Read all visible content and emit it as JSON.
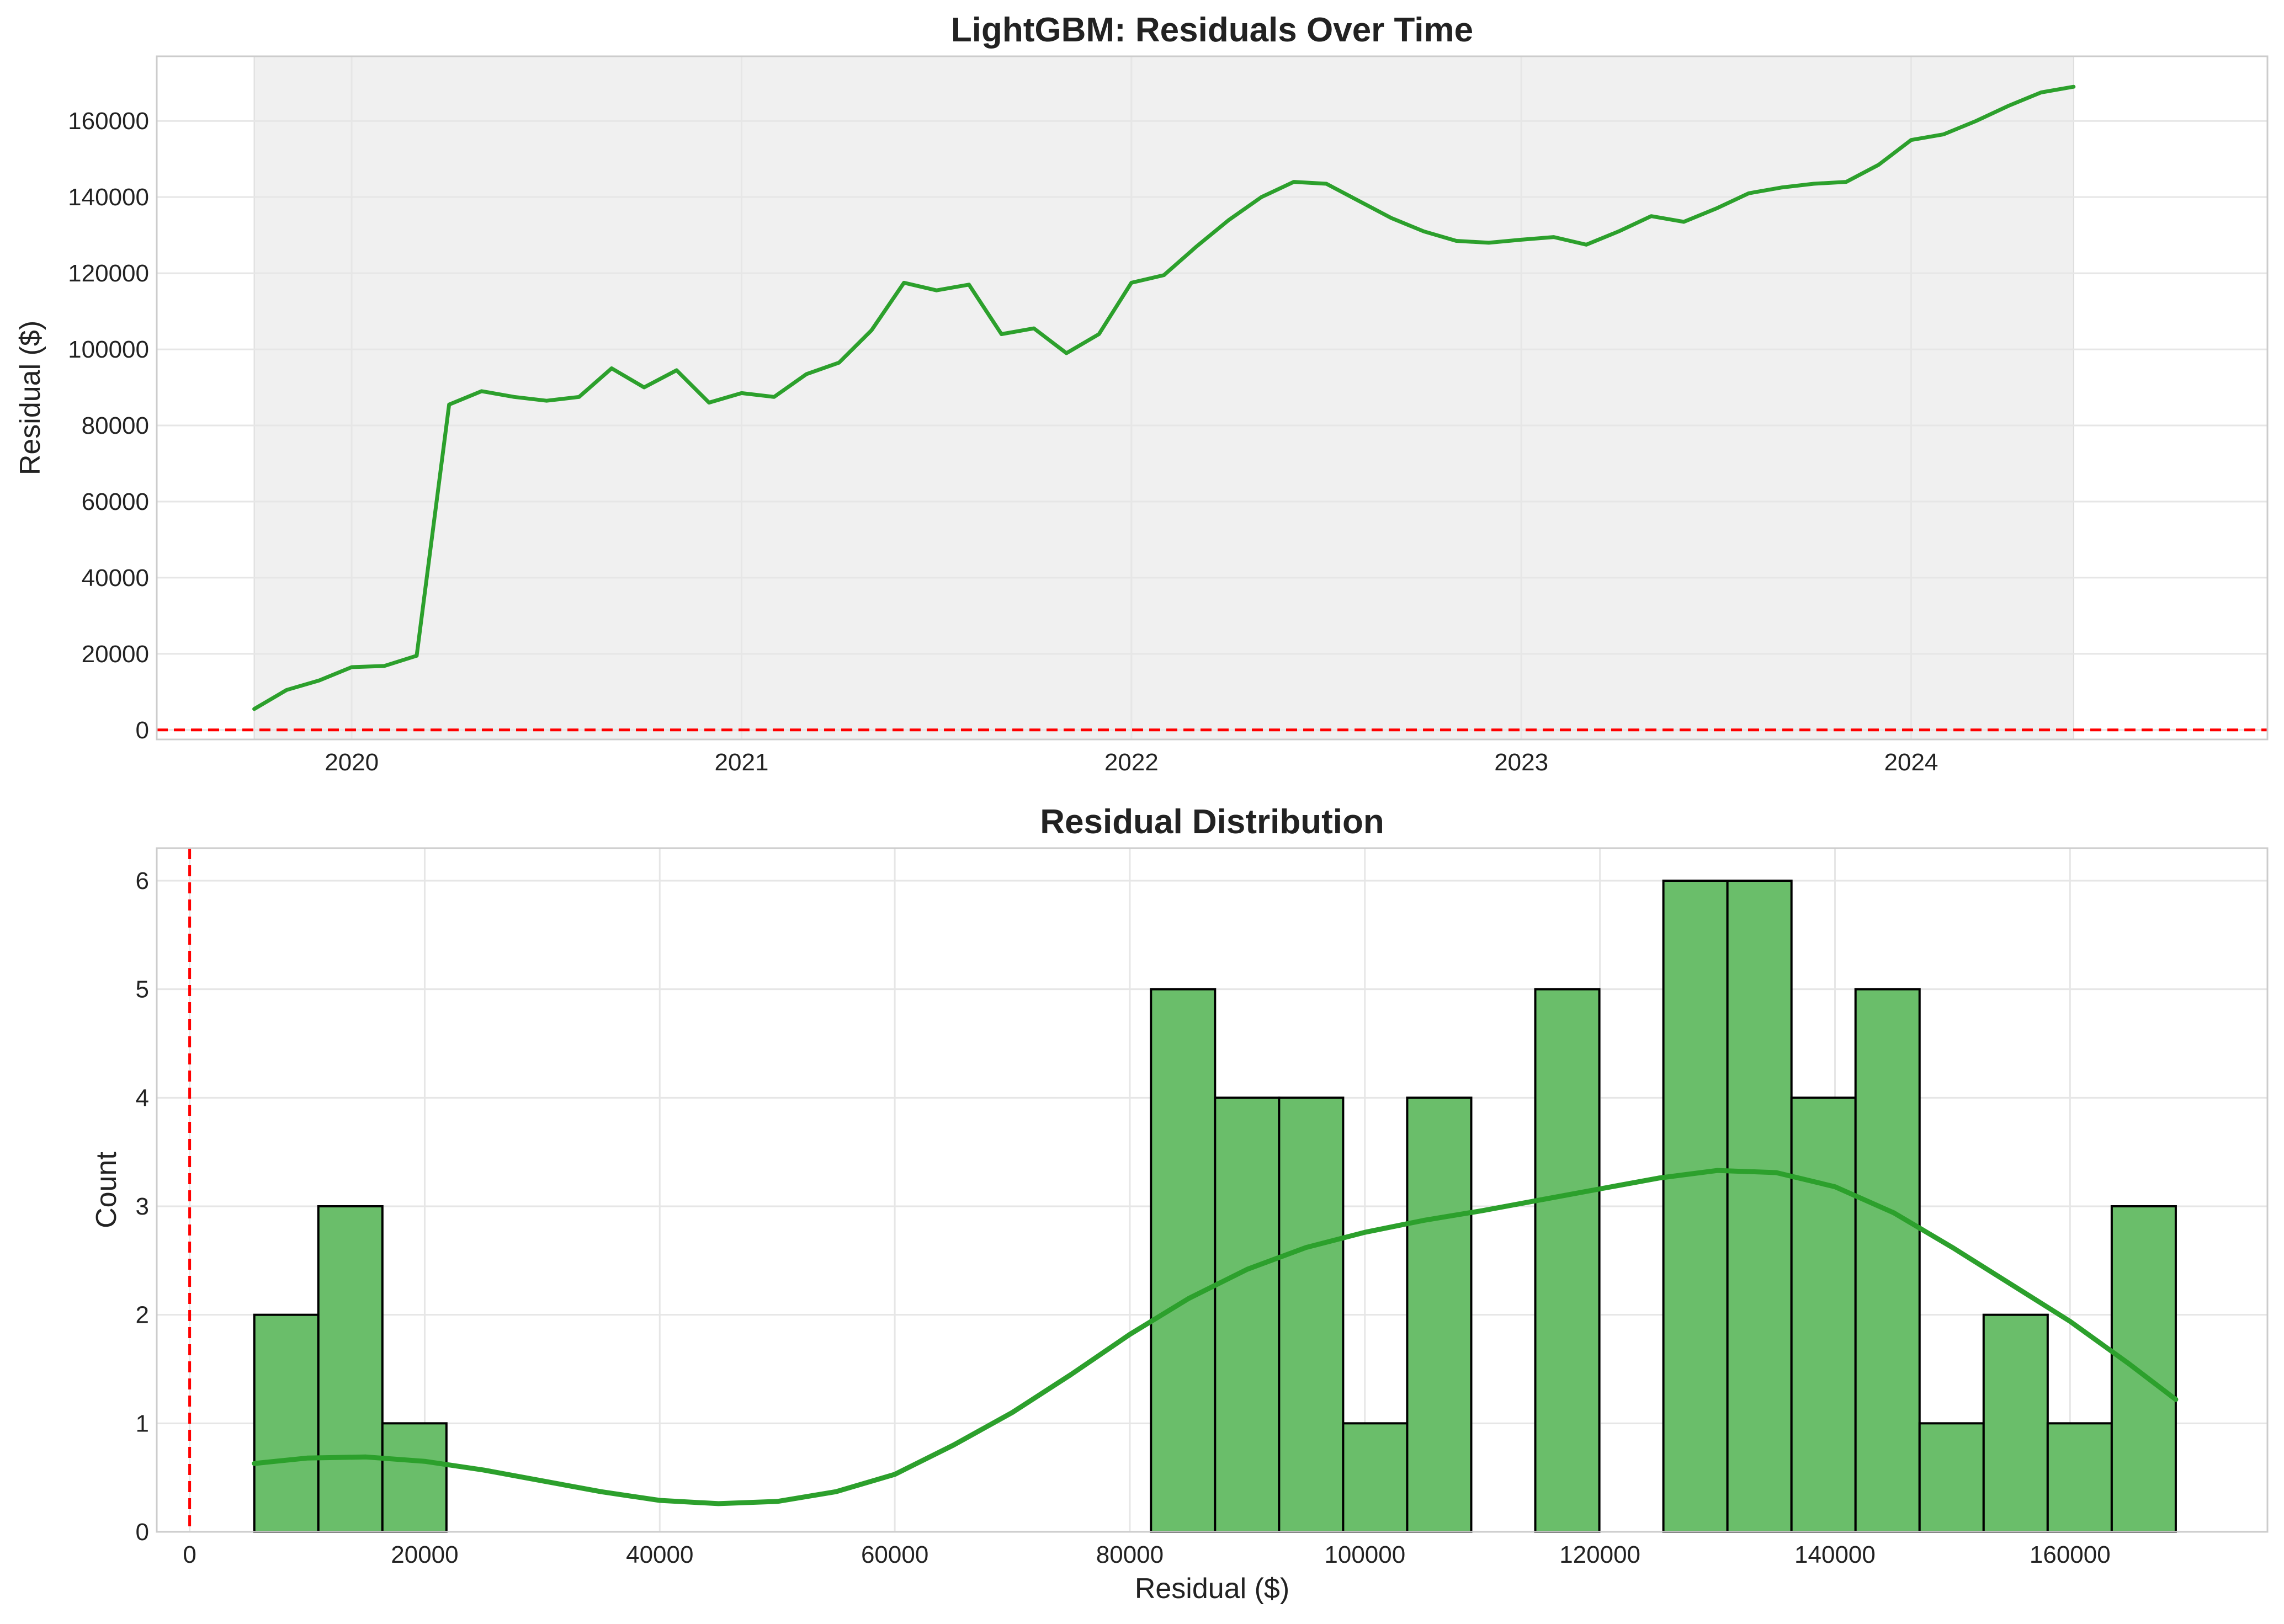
{
  "chart_data": [
    {
      "type": "line",
      "title": "LightGBM: Residuals Over Time",
      "xlabel": "",
      "ylabel": "Residual ($)",
      "x_tick_labels": [
        "2020",
        "2021",
        "2022",
        "2023",
        "2024"
      ],
      "y_tick_labels": [
        "0",
        "20000",
        "40000",
        "60000",
        "80000",
        "100000",
        "120000",
        "140000",
        "160000"
      ],
      "xlim": [
        "2019-07-01",
        "2024-11-30"
      ],
      "ylim": [
        -2500,
        177000
      ],
      "grid": true,
      "shaded_region": {
        "from": "2019-10",
        "to": "2024-06",
        "color": "#f0f0f0"
      },
      "reference_line": {
        "y": 0,
        "style": "dashed",
        "color": "#ff0000"
      },
      "line_color": "#2ca02c",
      "series": [
        {
          "x": [
            "2019-10",
            "2019-11",
            "2019-12",
            "2020-01",
            "2020-02",
            "2020-03",
            "2020-04",
            "2020-05",
            "2020-06",
            "2020-07",
            "2020-08",
            "2020-09",
            "2020-10",
            "2020-11",
            "2020-12",
            "2021-01",
            "2021-02",
            "2021-03",
            "2021-04",
            "2021-05",
            "2021-06",
            "2021-07",
            "2021-08",
            "2021-09",
            "2021-10",
            "2021-11",
            "2021-12",
            "2022-01",
            "2022-02",
            "2022-03",
            "2022-04",
            "2022-05",
            "2022-06",
            "2022-07",
            "2022-08",
            "2022-09",
            "2022-10",
            "2022-11",
            "2022-12",
            "2023-01",
            "2023-02",
            "2023-03",
            "2023-04",
            "2023-05",
            "2023-06",
            "2023-07",
            "2023-08",
            "2023-09",
            "2023-10",
            "2023-11",
            "2023-12",
            "2024-01",
            "2024-02",
            "2024-03",
            "2024-04",
            "2024-05",
            "2024-06"
          ],
          "values": [
            5500,
            10500,
            13000,
            16500,
            16800,
            19500,
            85500,
            89000,
            87500,
            86500,
            87500,
            95000,
            90000,
            94500,
            86000,
            88500,
            87500,
            93500,
            96500,
            105000,
            117500,
            115500,
            117000,
            104000,
            105500,
            99000,
            104000,
            117500,
            119500,
            127000,
            134000,
            140000,
            144000,
            143500,
            139000,
            134500,
            131000,
            128500,
            128000,
            128800,
            129500,
            127500,
            131000,
            135000,
            133500,
            137000,
            141000,
            142500,
            143500,
            144000,
            148500,
            155000,
            156500,
            160000,
            164000,
            167500,
            169000
          ]
        }
      ]
    },
    {
      "type": "bar",
      "title": "Residual Distribution",
      "xlabel": "Residual ($)",
      "ylabel": "Count",
      "x_tick_labels": [
        "0",
        "20000",
        "40000",
        "60000",
        "80000",
        "100000",
        "120000",
        "140000",
        "160000"
      ],
      "y_tick_labels": [
        "0",
        "1",
        "2",
        "3",
        "4",
        "5",
        "6"
      ],
      "xlim": [
        -2800,
        176800
      ],
      "ylim": [
        0,
        6.3
      ],
      "grid": true,
      "reference_line": {
        "x": 0,
        "style": "dashed",
        "color": "#ff0000"
      },
      "bar_color": "#6abe6a",
      "bar_edge_color": "#000000",
      "kde_color": "#2ca02c",
      "bin_range": [
        5500,
        169000
      ],
      "bin_count": 30,
      "counts": [
        2,
        3,
        1,
        0,
        0,
        0,
        0,
        0,
        0,
        0,
        0,
        0,
        0,
        0,
        5,
        4,
        4,
        1,
        4,
        0,
        5,
        0,
        6,
        6,
        4,
        5,
        1,
        2,
        1,
        3
      ],
      "kde": {
        "x": [
          5500,
          10000,
          15000,
          20000,
          25000,
          30000,
          35000,
          40000,
          45000,
          50000,
          55000,
          60000,
          65000,
          70000,
          75000,
          80000,
          85000,
          90000,
          95000,
          100000,
          105000,
          110000,
          115000,
          120000,
          125000,
          130000,
          135000,
          140000,
          145000,
          150000,
          155000,
          160000,
          165000,
          169000
        ],
        "y": [
          0.63,
          0.68,
          0.69,
          0.65,
          0.57,
          0.47,
          0.37,
          0.29,
          0.26,
          0.28,
          0.37,
          0.53,
          0.8,
          1.1,
          1.45,
          1.82,
          2.15,
          2.42,
          2.62,
          2.76,
          2.87,
          2.96,
          3.06,
          3.16,
          3.26,
          3.33,
          3.31,
          3.18,
          2.94,
          2.62,
          2.28,
          1.94,
          1.55,
          1.22
        ]
      }
    }
  ]
}
